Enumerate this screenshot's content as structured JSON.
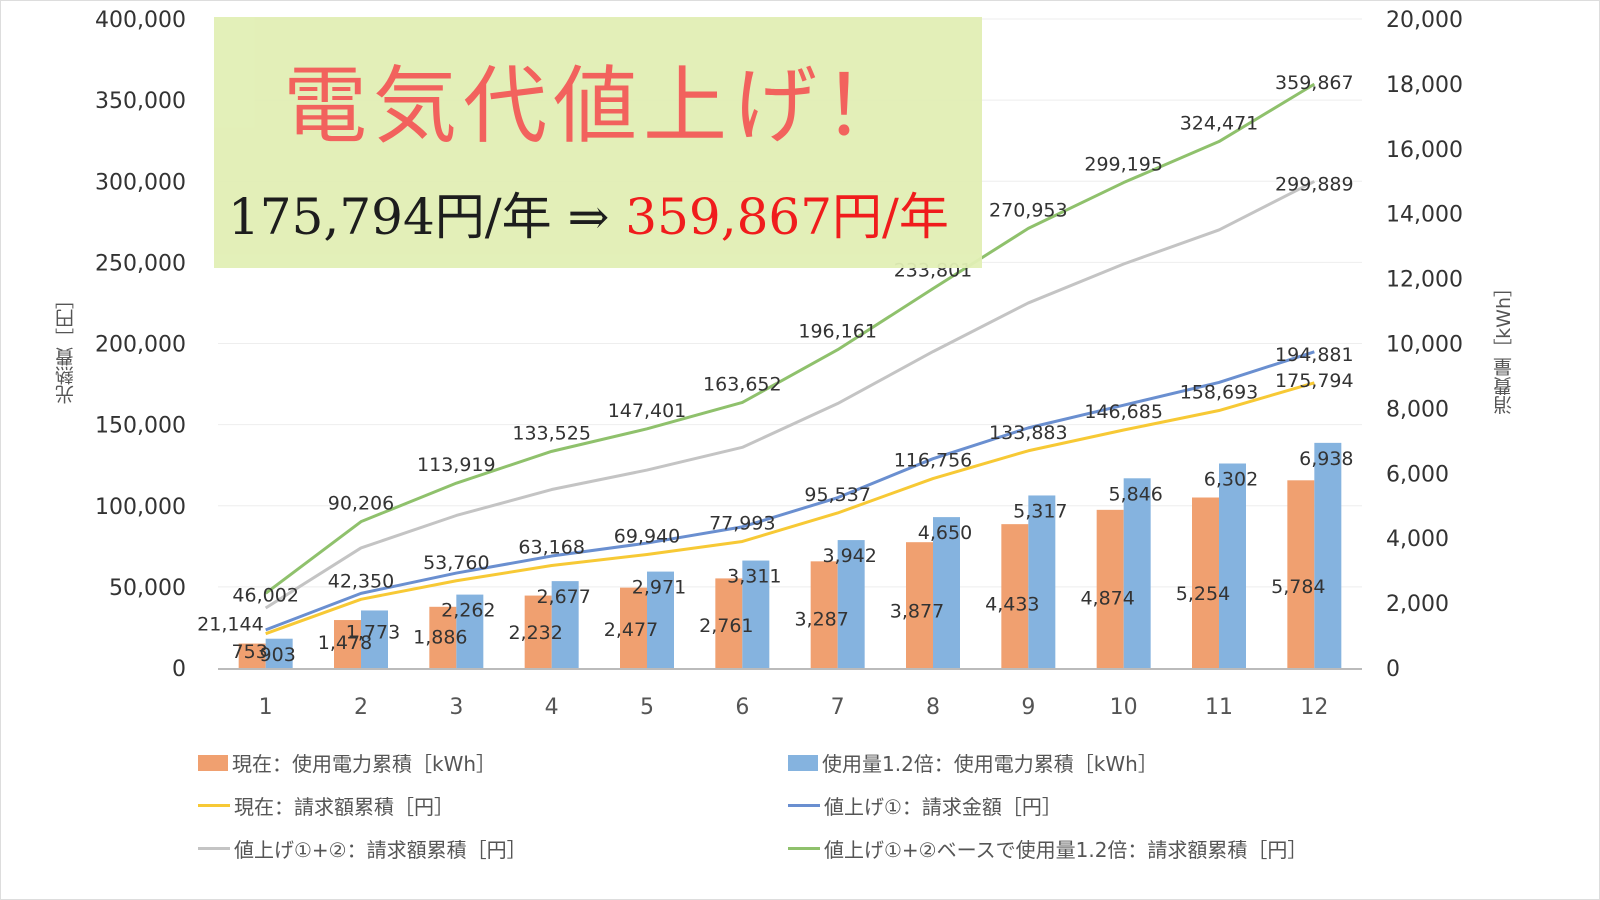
{
  "banner": {
    "title": "電気代値上げ！",
    "sub_current": "175,794円/年 ⇒ ",
    "sub_new": "359,867円/年"
  },
  "colors": {
    "orange": "#f0a070",
    "blue_bar": "#85b3df",
    "yellow": "#f7c935",
    "blue_line": "#6a8fd0",
    "gray": "#c4c4c4",
    "green": "#8fc16c"
  },
  "chart_data": {
    "type": "bar+line",
    "categories": [
      "1",
      "2",
      "3",
      "4",
      "5",
      "6",
      "7",
      "8",
      "9",
      "10",
      "11",
      "12"
    ],
    "y_left": {
      "title": "光熱費［円］",
      "range": [
        0,
        400000
      ],
      "ticks": [
        "0",
        "50,000",
        "100,000",
        "150,000",
        "200,000",
        "250,000",
        "300,000",
        "350,000",
        "400,000"
      ]
    },
    "y_right": {
      "title": "消費量［kWh］",
      "range": [
        0,
        20000
      ],
      "ticks": [
        "0",
        "2,000",
        "4,000",
        "6,000",
        "8,000",
        "10,000",
        "12,000",
        "14,000",
        "16,000",
        "18,000",
        "20,000"
      ]
    },
    "grid": true,
    "legend_position": "bottom",
    "series": [
      {
        "name": "現在：使用電力累積［kWh］",
        "kind": "bar",
        "axis": "right",
        "color": "#f0a070",
        "values": [
          753,
          1478,
          1886,
          2232,
          2477,
          2761,
          3287,
          3877,
          4433,
          4874,
          5254,
          5784
        ],
        "labels": [
          "753",
          "1,478",
          "1,886",
          "2,232",
          "2,477",
          "2,761",
          "3,287",
          "3,877",
          "4,433",
          "4,874",
          "5,254",
          "5,784"
        ]
      },
      {
        "name": "使用量1.2倍：使用電力累積［kWh］",
        "kind": "bar",
        "axis": "right",
        "color": "#85b3df",
        "values": [
          903,
          1773,
          2262,
          2677,
          2971,
          3311,
          3942,
          4650,
          5317,
          5846,
          6302,
          6938
        ],
        "labels": [
          "903",
          "1,773",
          "2,262",
          "2,677",
          "2,971",
          "3,311",
          "3,942",
          "4,650",
          "5,317",
          "5,846",
          "6,302",
          "6,938"
        ]
      },
      {
        "name": "現在：請求額累積［円］",
        "kind": "line",
        "axis": "left",
        "color": "#f7c935",
        "values": [
          21144,
          42350,
          53760,
          63168,
          69940,
          77993,
          95537,
          116756,
          133883,
          146685,
          158693,
          175794
        ],
        "labels": [
          "21,144",
          "42,350",
          "53,760",
          "63,168",
          "69,940",
          "77,993",
          "95,537",
          "116,756",
          "133,883",
          "146,685",
          "158,693",
          "175,794"
        ]
      },
      {
        "name": "値上げ①：請求金額［円］",
        "kind": "line",
        "axis": "left",
        "color": "#6a8fd0",
        "values": [
          23500,
          46000,
          58500,
          69000,
          77000,
          87000,
          105000,
          129000,
          148000,
          162000,
          176000,
          194881
        ],
        "labels": [
          "",
          "",
          "",
          "",
          "",
          "",
          "",
          "",
          "",
          "",
          "",
          "194,881"
        ]
      },
      {
        "name": "値上げ①+②：請求額累積［円］",
        "kind": "line",
        "axis": "left",
        "color": "#c4c4c4",
        "values": [
          37000,
          74000,
          94000,
          110000,
          122000,
          136000,
          163000,
          195000,
          225000,
          249000,
          270000,
          299889
        ],
        "labels": [
          "",
          "",
          "",
          "",
          "",
          "",
          "",
          "",
          "",
          "",
          "",
          "299,889"
        ]
      },
      {
        "name": "値上げ①+②ベースで使用量1.2倍：請求額累積［円］",
        "kind": "line",
        "axis": "left",
        "color": "#8fc16c",
        "values": [
          46002,
          90206,
          113919,
          133525,
          147401,
          163652,
          196161,
          233801,
          270953,
          299195,
          324471,
          359867
        ],
        "labels": [
          "46,002",
          "90,206",
          "113,919",
          "133,525",
          "147,401",
          "163,652",
          "196,161",
          "233,801",
          "270,953",
          "299,195",
          "324,471",
          "359,867"
        ]
      }
    ]
  }
}
